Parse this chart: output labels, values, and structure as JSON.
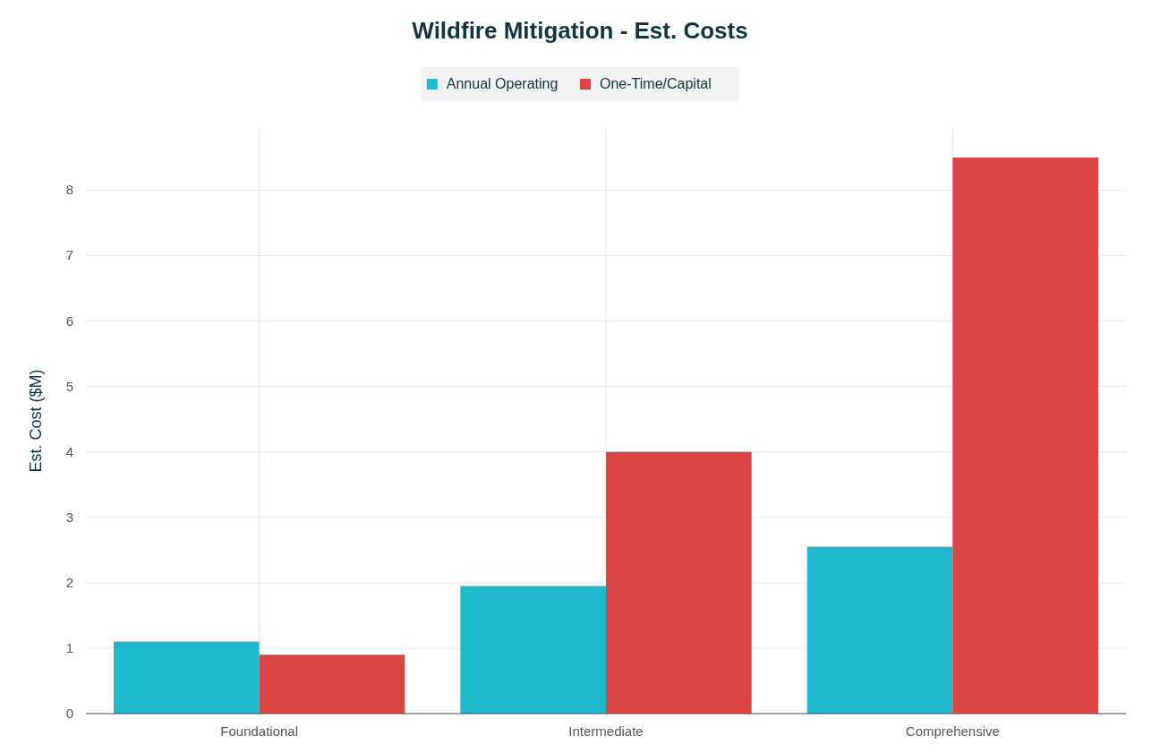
{
  "chart_data": {
    "type": "bar",
    "title": "Wildfire Mitigation - Est. Costs",
    "ylabel": "Est. Cost ($M)",
    "categories": [
      "Foundational",
      "Intermediate",
      "Comprehensive"
    ],
    "series": [
      {
        "name": "Annual Operating",
        "color": "#1fb8cd",
        "values": [
          1.1,
          1.95,
          2.55
        ]
      },
      {
        "name": "One-Time/Capital",
        "color": "#db4545",
        "values": [
          0.9,
          4.0,
          8.5
        ]
      }
    ],
    "ylim": [
      0,
      8.95
    ],
    "yticks": [
      0,
      1,
      2,
      3,
      4,
      5,
      6,
      7,
      8
    ],
    "grid": true,
    "legend": "top"
  }
}
